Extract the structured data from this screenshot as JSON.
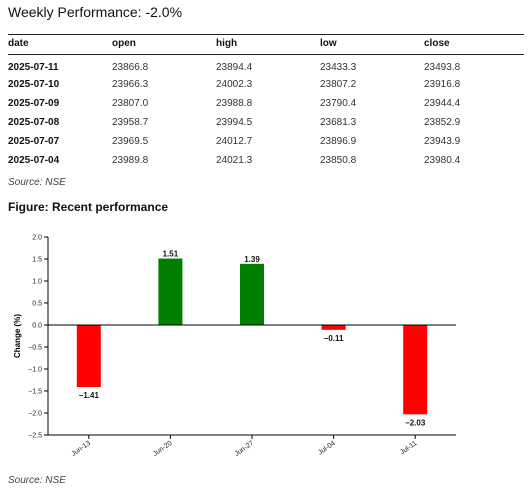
{
  "header": {
    "title": "Weekly Performance: -2.0%"
  },
  "table": {
    "columns": [
      "date",
      "open",
      "high",
      "low",
      "close"
    ],
    "rows": [
      [
        "2025-07-11",
        "23866.8",
        "23894.4",
        "23433.3",
        "23493.8"
      ],
      [
        "2025-07-10",
        "23966.3",
        "24002.3",
        "23807.2",
        "23916.8"
      ],
      [
        "2025-07-09",
        "23807.0",
        "23988.8",
        "23790.4",
        "23944.4"
      ],
      [
        "2025-07-08",
        "23958.7",
        "23994.5",
        "23681.3",
        "23852.9"
      ],
      [
        "2025-07-07",
        "23969.5",
        "24012.7",
        "23896.9",
        "23943.9"
      ],
      [
        "2025-07-04",
        "23989.8",
        "24021.3",
        "23850.8",
        "23980.4"
      ]
    ]
  },
  "source_table": "Source: NSE",
  "figure_title": "Figure: Recent performance",
  "source_figure": "Source: NSE",
  "chart_data": {
    "type": "bar",
    "categories": [
      "Jun-13",
      "Jun-20",
      "Jun-27",
      "Jul-04",
      "Jul-11"
    ],
    "values": [
      -1.41,
      1.51,
      1.39,
      -0.11,
      -2.03
    ],
    "data_labels": [
      "−1.41",
      "1.51",
      "1.39",
      "−0.11",
      "−2.03"
    ],
    "ylabel": "Change (%)",
    "xlabel": "",
    "ylim": [
      -2.5,
      2.0
    ],
    "yticks": [
      2.0,
      1.5,
      1.0,
      0.5,
      0.0,
      -0.5,
      -1.0,
      -1.5,
      -2.0,
      -2.5
    ],
    "ytick_labels": [
      "2.0",
      "1.5",
      "1.0",
      "0.5",
      "0.0",
      "−0.5",
      "−1.0",
      "−1.5",
      "−2.0",
      "−2.5"
    ],
    "colors": {
      "positive": "#008000",
      "negative": "#ff0000",
      "zero_line": "#000000"
    },
    "grid": false,
    "legend": "none"
  }
}
